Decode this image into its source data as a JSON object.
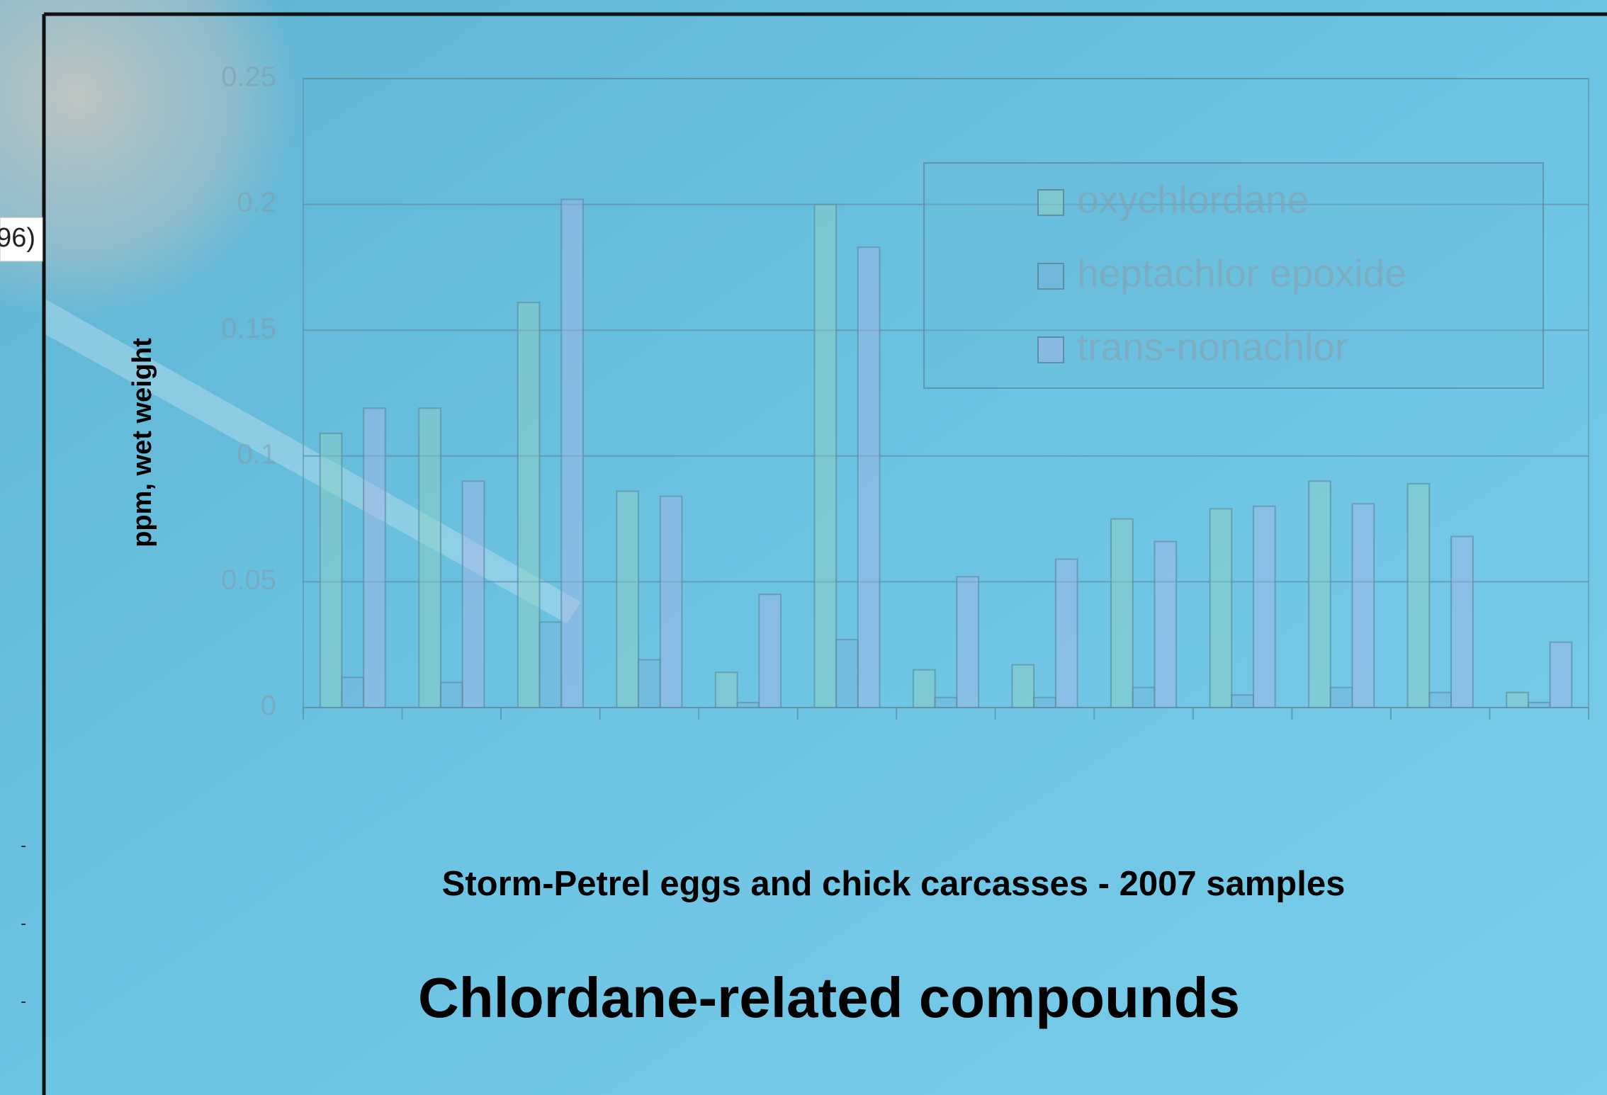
{
  "chart_data": {
    "type": "bar",
    "title": "Chlordane-related compounds",
    "x_label": "Storm-Petrel eggs and chick carcasses -  2007 samples",
    "y_label": "ppm, wet weight",
    "annotations": [
      "96)"
    ],
    "categories": [
      null,
      null,
      null,
      null,
      null,
      null,
      null,
      null,
      null,
      null,
      null,
      null,
      null
    ],
    "series": [
      {
        "name": "oxychlordane",
        "color": "#8fd0c0",
        "values": [
          0.109,
          0.119,
          0.161,
          0.086,
          0.014,
          0.2,
          0.015,
          0.017,
          0.075,
          0.079,
          0.09,
          0.089,
          0.006
        ]
      },
      {
        "name": "heptachlor epoxide",
        "color": "#78b4dc",
        "values": [
          0.012,
          0.01,
          0.034,
          0.019,
          0.002,
          0.027,
          0.004,
          0.004,
          0.008,
          0.005,
          0.008,
          0.006,
          0.002
        ]
      },
      {
        "name": "trans-nonachlor",
        "color": "#a8b4e6",
        "values": [
          0.119,
          0.09,
          0.202,
          0.084,
          0.045,
          0.183,
          0.052,
          0.059,
          0.066,
          0.08,
          0.081,
          0.068,
          0.026
        ]
      }
    ],
    "ylim": [
      0,
      0.25
    ],
    "yticks": [
      0,
      0.05,
      0.1,
      0.15,
      0.2,
      0.25
    ],
    "grid": true,
    "legend": "upper right"
  }
}
